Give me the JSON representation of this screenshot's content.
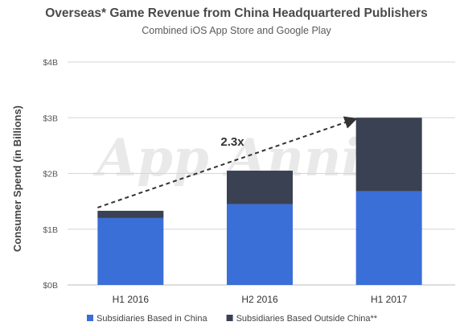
{
  "chart_data": {
    "type": "bar",
    "stacked": true,
    "title": "Overseas* Game Revenue from China Headquartered Publishers",
    "subtitle": "Combined iOS App Store and Google Play",
    "ylabel": "Consumer Spend (in Billions)",
    "xlabel": "",
    "ylim": [
      0,
      4
    ],
    "yticks": [
      0,
      1,
      2,
      3,
      4
    ],
    "ytick_labels": [
      "$0B",
      "$1B",
      "$2B",
      "$3B",
      "$4B"
    ],
    "grid": true,
    "categories": [
      "H1 2016",
      "H2 2016",
      "H1 2017"
    ],
    "series": [
      {
        "name": "Subsidiaries Based in China",
        "color": "#3a6fd8",
        "values": [
          1.2,
          1.45,
          1.68
        ]
      },
      {
        "name": "Subsidiaries Based Outside China**",
        "color": "#394152",
        "values": [
          0.13,
          0.6,
          1.32
        ]
      }
    ],
    "annotation": {
      "text": "2.3x",
      "from_category": "H1 2016",
      "to_category": "H1 2017"
    },
    "legend": "bottom",
    "watermark": "App Annie"
  }
}
